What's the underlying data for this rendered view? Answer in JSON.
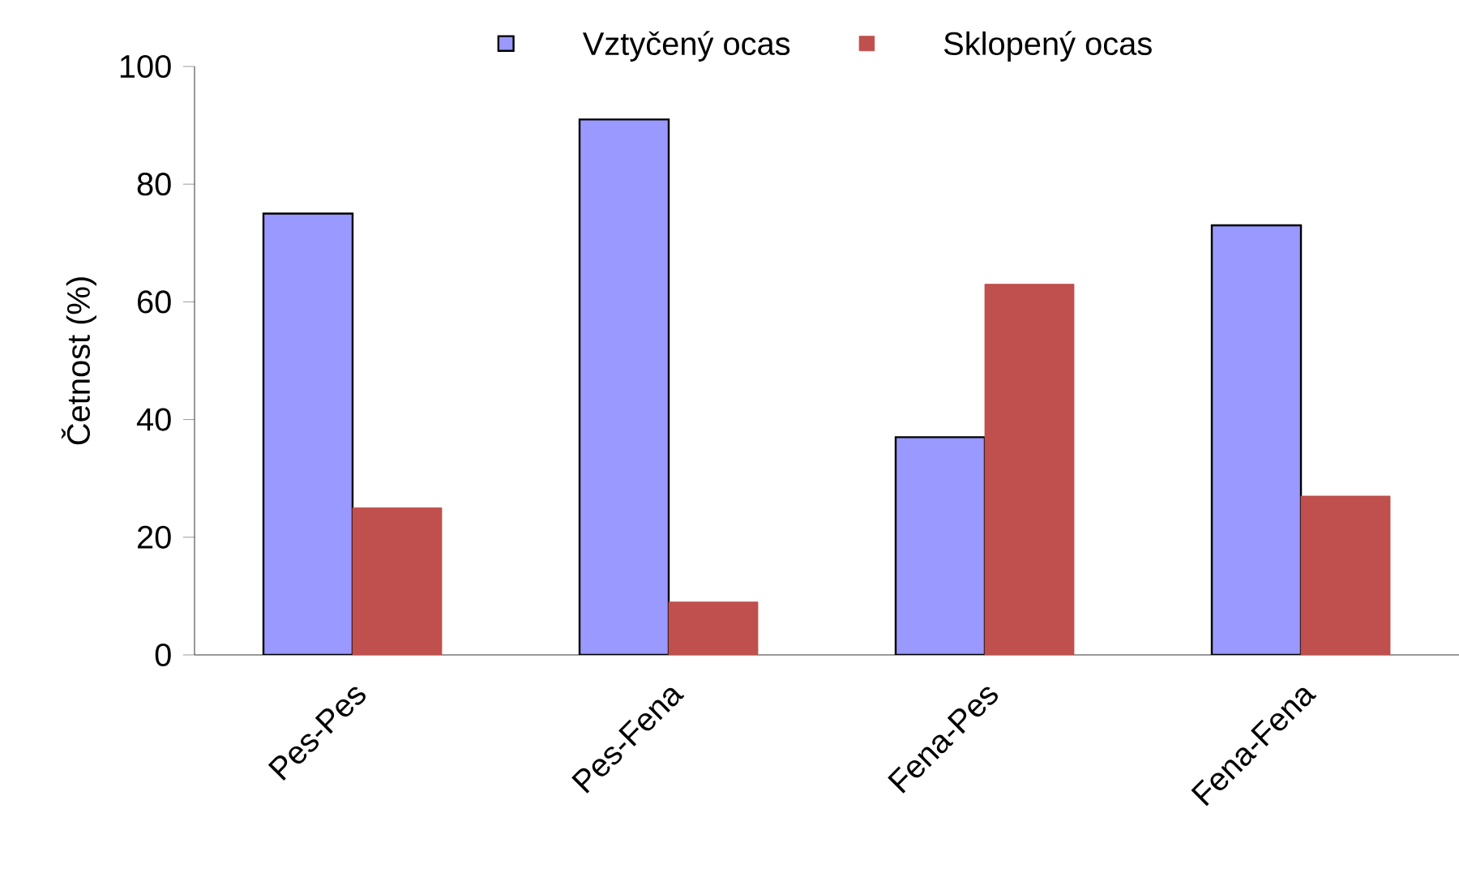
{
  "chart_data": {
    "type": "bar",
    "ylabel": "Četnost (%)",
    "categories": [
      "Pes-Pes",
      "Pes-Fena",
      "Fena-Pes",
      "Fena-Fena"
    ],
    "series": [
      {
        "name": "Vztyčený ocas",
        "color": "#9999ff",
        "values": [
          75,
          91,
          37,
          73
        ]
      },
      {
        "name": "Sklopený ocas",
        "color": "#c0504d",
        "values": [
          25,
          9,
          63,
          27
        ]
      }
    ],
    "ylim": [
      0,
      100
    ],
    "yticks": [
      0,
      20,
      40,
      60,
      80,
      100
    ],
    "legend": "top"
  }
}
